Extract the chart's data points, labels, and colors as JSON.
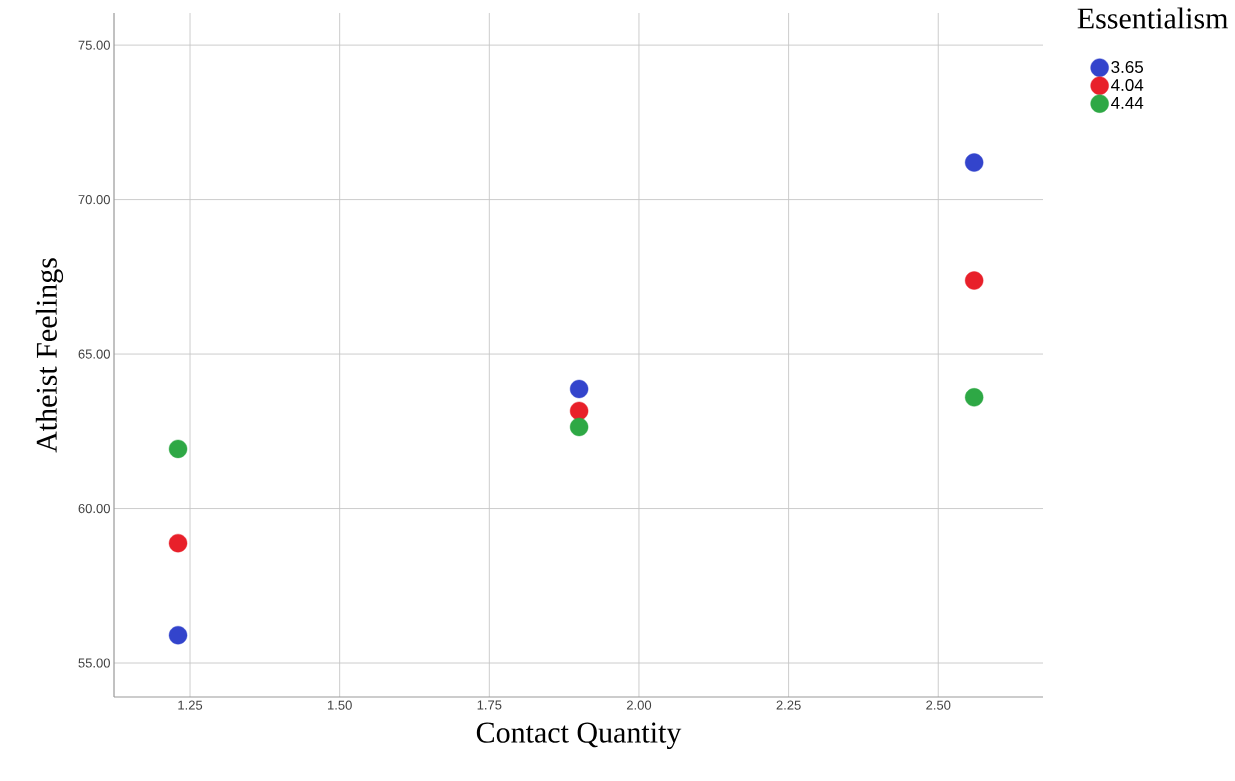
{
  "chart_data": {
    "type": "scatter",
    "xlabel": "Contact Quantity",
    "ylabel": "Atheist Feelings",
    "legend_title": "Essentialism",
    "legend": "top right",
    "grid": true,
    "xlim": [
      1.123,
      2.675
    ],
    "ylim": [
      53.9,
      76.04
    ],
    "xticks": [
      {
        "value": 1.25,
        "label": "1.25"
      },
      {
        "value": 1.5,
        "label": "1.50"
      },
      {
        "value": 1.75,
        "label": "1.75"
      },
      {
        "value": 2.0,
        "label": "2.00"
      },
      {
        "value": 2.25,
        "label": "2.25"
      },
      {
        "value": 2.5,
        "label": "2.50"
      }
    ],
    "yticks": [
      {
        "value": 55,
        "label": "55.00"
      },
      {
        "value": 60,
        "label": "60.00"
      },
      {
        "value": 65,
        "label": "65.00"
      },
      {
        "value": 70,
        "label": "70.00"
      },
      {
        "value": 75,
        "label": "75.00"
      }
    ],
    "x": [
      1.23,
      1.9,
      2.56
    ],
    "series": [
      {
        "name": "3.65",
        "color": "#3344cc",
        "values": [
          55.9,
          63.87,
          71.2
        ]
      },
      {
        "name": "4.04",
        "color": "#e8202a",
        "values": [
          58.88,
          63.16,
          67.38
        ]
      },
      {
        "name": "4.44",
        "color": "#2ea845",
        "values": [
          61.93,
          62.64,
          63.6
        ]
      }
    ]
  }
}
